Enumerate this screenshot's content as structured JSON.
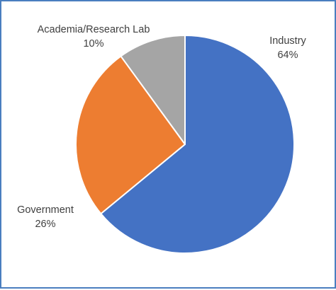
{
  "chart_data": {
    "type": "pie",
    "title": "",
    "categories": [
      "Industry",
      "Government",
      "Academia/Research Lab"
    ],
    "values": [
      64,
      26,
      10
    ],
    "percent_labels": [
      "64%",
      "26%",
      "10%"
    ],
    "colors": [
      "#4472c4",
      "#ed7d31",
      "#a5a5a5"
    ],
    "slice_border_color": "#ffffff",
    "start_angle": "12 o'clock",
    "direction": "clockwise",
    "legend": "none",
    "data_labels": "outside, category name and percentage"
  }
}
